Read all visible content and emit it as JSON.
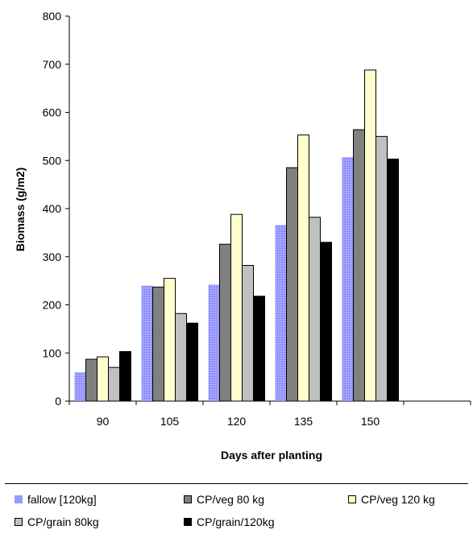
{
  "chart_data": {
    "type": "bar",
    "xlabel": "Days after planting",
    "ylabel": "Biomass (g/m2)",
    "ylim": [
      0,
      800
    ],
    "yticks": [
      0,
      100,
      200,
      300,
      400,
      500,
      600,
      700,
      800
    ],
    "categories": [
      "90",
      "105",
      "120",
      "135",
      "150",
      ""
    ],
    "grid": false,
    "legend_position": "bottom",
    "series": [
      {
        "name": "fallow [120kg]",
        "color": "#9999ff",
        "values": [
          60,
          240,
          242,
          366,
          507,
          null
        ]
      },
      {
        "name": "CP/veg 80 kg",
        "color": "#808080",
        "values": [
          87,
          237,
          326,
          485,
          564,
          null
        ]
      },
      {
        "name": "CP/veg 120 kg",
        "color": "#ffffcc",
        "values": [
          92,
          255,
          388,
          553,
          688,
          null
        ]
      },
      {
        "name": "CP/grain 80kg",
        "color": "#c0c0c0",
        "values": [
          70,
          182,
          282,
          382,
          550,
          null
        ]
      },
      {
        "name": "CP/grain/120kg",
        "color": "#000000",
        "values": [
          103,
          162,
          218,
          330,
          503,
          null
        ]
      }
    ]
  }
}
